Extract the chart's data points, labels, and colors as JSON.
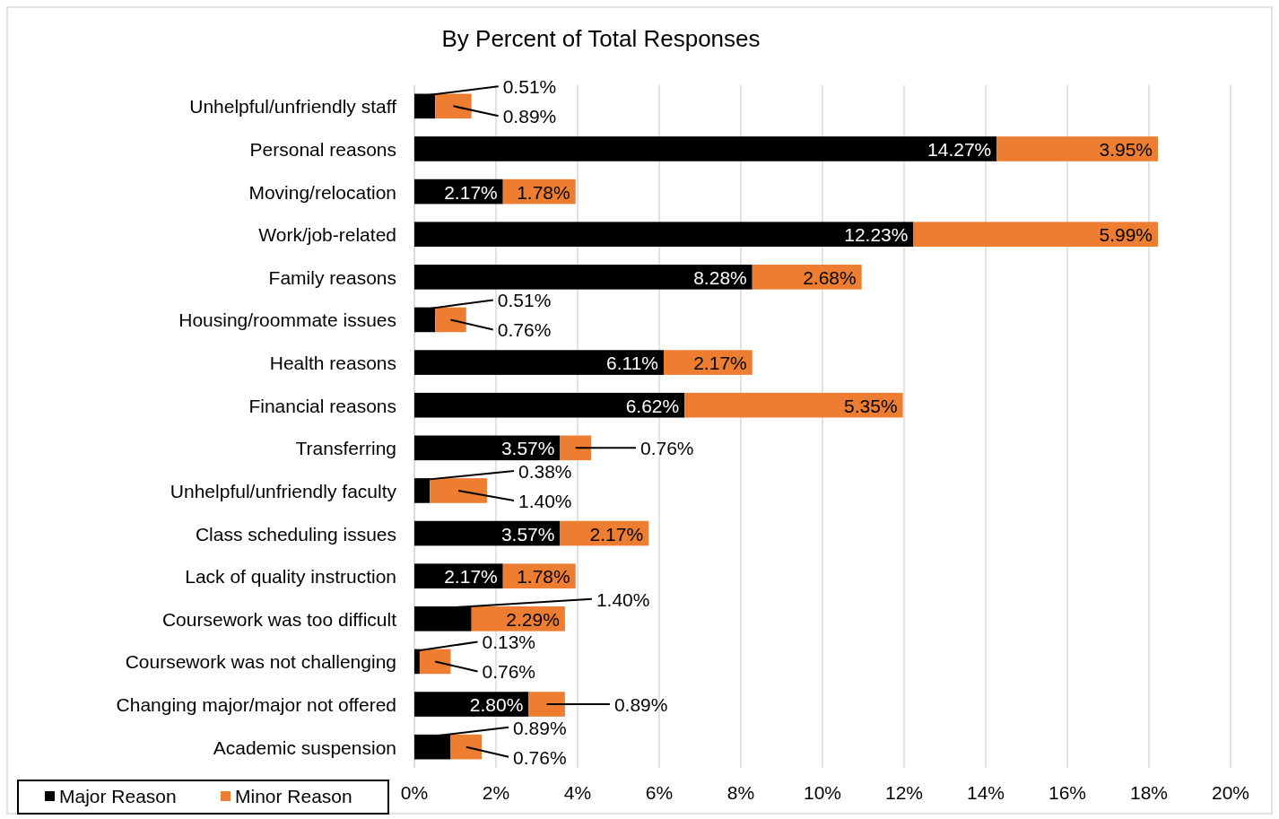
{
  "chart_data": {
    "type": "bar",
    "orientation": "horizontal",
    "stacked": true,
    "title": "By Percent of Total Responses",
    "categories": [
      "Unhelpful/unfriendly staff",
      "Personal reasons",
      "Moving/relocation",
      "Work/job-related",
      "Family reasons",
      "Housing/roommate issues",
      "Health reasons",
      "Financial reasons",
      "Transferring",
      "Unhelpful/unfriendly faculty",
      "Class scheduling issues",
      "Lack of quality instruction",
      "Coursework was too difficult",
      "Coursework was not challenging",
      "Changing major/major not offered",
      "Academic suspension"
    ],
    "series": [
      {
        "name": "Major Reason",
        "color": "#000000",
        "values": [
          0.51,
          14.27,
          2.17,
          12.23,
          8.28,
          0.51,
          6.11,
          6.62,
          3.57,
          0.38,
          3.57,
          2.17,
          1.4,
          0.13,
          2.8,
          0.89
        ],
        "value_labels": [
          "0.51%",
          "14.27%",
          "2.17%",
          "12.23%",
          "8.28%",
          "0.51%",
          "6.11%",
          "6.62%",
          "3.57%",
          "0.38%",
          "3.57%",
          "2.17%",
          "1.40%",
          "0.13%",
          "2.80%",
          "0.89%"
        ]
      },
      {
        "name": "Minor Reason",
        "color": "#ed7d31",
        "values": [
          0.89,
          3.95,
          1.78,
          5.99,
          2.68,
          0.76,
          2.17,
          5.35,
          0.76,
          1.4,
          2.17,
          1.78,
          2.29,
          0.76,
          0.89,
          0.76
        ],
        "value_labels": [
          "0.89%",
          "3.95%",
          "1.78%",
          "5.99%",
          "2.68%",
          "0.76%",
          "2.17%",
          "5.35%",
          "0.76%",
          "1.40%",
          "2.17%",
          "1.78%",
          "2.29%",
          "0.76%",
          "0.89%",
          "0.76%"
        ]
      }
    ],
    "xlim": [
      0,
      20
    ],
    "xticks": [
      {
        "value": 0,
        "label": "0%"
      },
      {
        "value": 2,
        "label": "2%"
      },
      {
        "value": 4,
        "label": "4%"
      },
      {
        "value": 6,
        "label": "6%"
      },
      {
        "value": 8,
        "label": "8%"
      },
      {
        "value": 10,
        "label": "10%"
      },
      {
        "value": 12,
        "label": "12%"
      },
      {
        "value": 14,
        "label": "14%"
      },
      {
        "value": 16,
        "label": "16%"
      },
      {
        "value": 18,
        "label": "18%"
      },
      {
        "value": 20,
        "label": "20%"
      }
    ],
    "grid": "x",
    "legend": "bottom left"
  }
}
